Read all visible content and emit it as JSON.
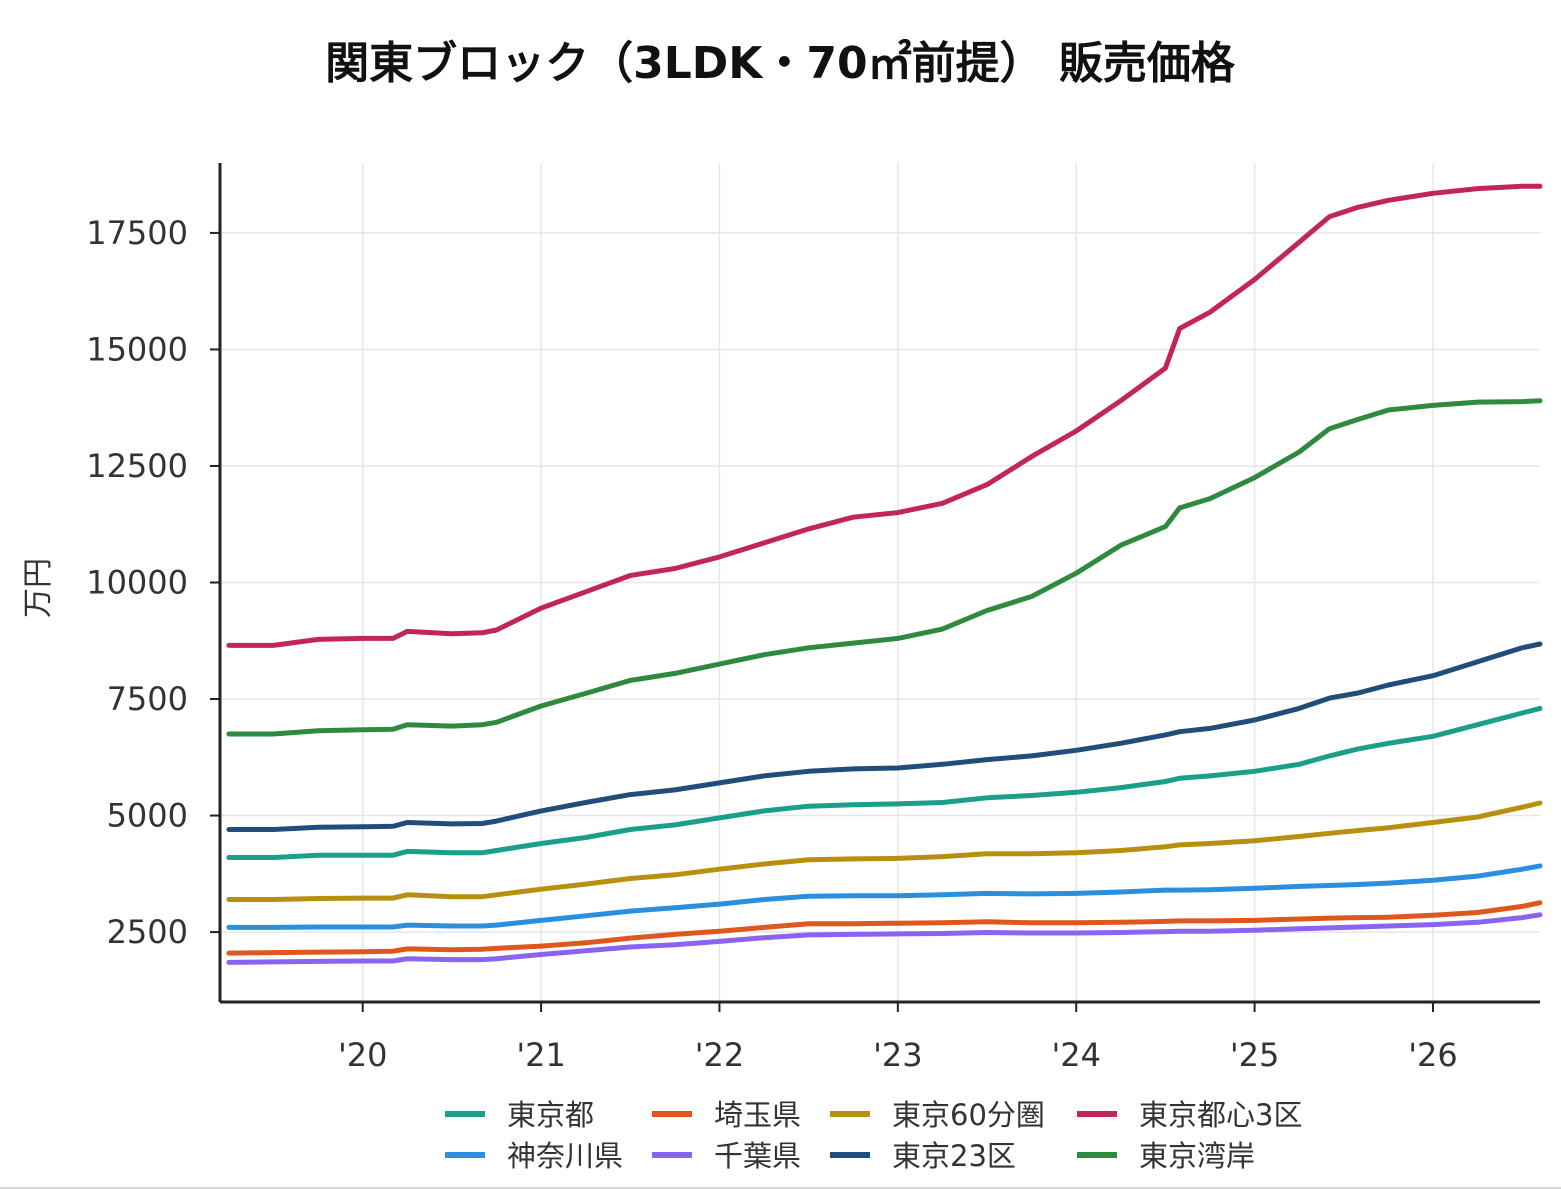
{
  "chart_data": {
    "type": "line",
    "title": "関東ブロック（3LDK・70㎡前提） 販売価格",
    "ylabel": "万円",
    "xlabel": "",
    "ylim": [
      1000,
      19000
    ],
    "yticks": [
      2500,
      5000,
      7500,
      10000,
      12500,
      15000,
      17500
    ],
    "xlim": [
      2019.2,
      2026.6
    ],
    "xticks": [
      {
        "value": 2020,
        "label": "'20"
      },
      {
        "value": 2021,
        "label": "'21"
      },
      {
        "value": 2022,
        "label": "'22"
      },
      {
        "value": 2023,
        "label": "'23"
      },
      {
        "value": 2024,
        "label": "'24"
      },
      {
        "value": 2025,
        "label": "'25"
      },
      {
        "value": 2026,
        "label": "'26"
      }
    ],
    "grid": true,
    "legend_position": "bottom",
    "x": [
      2019.25,
      2019.5,
      2019.75,
      2020.0,
      2020.17,
      2020.25,
      2020.5,
      2020.67,
      2020.75,
      2021.0,
      2021.25,
      2021.5,
      2021.75,
      2022.0,
      2022.25,
      2022.5,
      2022.75,
      2023.0,
      2023.25,
      2023.5,
      2023.75,
      2024.0,
      2024.25,
      2024.5,
      2024.58,
      2024.75,
      2025.0,
      2025.25,
      2025.42,
      2025.58,
      2025.75,
      2026.0,
      2026.25,
      2026.5,
      2026.6
    ],
    "series": [
      {
        "name": "東京都",
        "color": "#1b9e8a",
        "values": [
          4100,
          4100,
          4150,
          4150,
          4150,
          4230,
          4200,
          4200,
          4250,
          4400,
          4530,
          4700,
          4800,
          4950,
          5100,
          5200,
          5230,
          5250,
          5280,
          5380,
          5430,
          5500,
          5600,
          5730,
          5800,
          5850,
          5950,
          6100,
          6280,
          6430,
          6550,
          6700,
          6950,
          7200,
          7300
        ]
      },
      {
        "name": "埼玉県",
        "color": "#e0561f",
        "values": [
          2050,
          2060,
          2070,
          2080,
          2090,
          2140,
          2120,
          2130,
          2150,
          2200,
          2270,
          2370,
          2450,
          2520,
          2600,
          2680,
          2680,
          2690,
          2700,
          2720,
          2700,
          2700,
          2710,
          2730,
          2740,
          2740,
          2750,
          2780,
          2800,
          2810,
          2820,
          2860,
          2920,
          3050,
          3130
        ]
      },
      {
        "name": "東京60分圏",
        "color": "#b8900f",
        "values": [
          3200,
          3200,
          3220,
          3230,
          3230,
          3300,
          3260,
          3260,
          3300,
          3420,
          3530,
          3650,
          3730,
          3850,
          3960,
          4050,
          4070,
          4080,
          4120,
          4180,
          4180,
          4200,
          4250,
          4330,
          4370,
          4400,
          4460,
          4550,
          4620,
          4680,
          4740,
          4850,
          4970,
          5180,
          5270
        ]
      },
      {
        "name": "東京都心3区",
        "color": "#c2255c",
        "values": [
          8650,
          8650,
          8780,
          8800,
          8800,
          8950,
          8900,
          8920,
          8980,
          9450,
          9800,
          10150,
          10300,
          10550,
          10850,
          11150,
          11400,
          11500,
          11700,
          12100,
          12700,
          13250,
          13900,
          14600,
          15450,
          15800,
          16500,
          17300,
          17850,
          18050,
          18200,
          18350,
          18450,
          18500,
          18500
        ]
      },
      {
        "name": "神奈川県",
        "color": "#2b8fe0",
        "values": [
          2600,
          2600,
          2610,
          2610,
          2610,
          2650,
          2630,
          2630,
          2650,
          2750,
          2850,
          2950,
          3020,
          3100,
          3200,
          3270,
          3280,
          3280,
          3300,
          3330,
          3320,
          3330,
          3360,
          3400,
          3400,
          3410,
          3440,
          3480,
          3500,
          3520,
          3550,
          3610,
          3700,
          3850,
          3920
        ]
      },
      {
        "name": "千葉県",
        "color": "#8a63f0",
        "values": [
          1850,
          1860,
          1870,
          1880,
          1880,
          1930,
          1910,
          1910,
          1930,
          2020,
          2100,
          2180,
          2230,
          2300,
          2380,
          2440,
          2450,
          2460,
          2470,
          2490,
          2480,
          2480,
          2490,
          2510,
          2520,
          2520,
          2540,
          2570,
          2590,
          2610,
          2630,
          2660,
          2710,
          2810,
          2870
        ]
      },
      {
        "name": "東京23区",
        "color": "#1f4e7a",
        "values": [
          4700,
          4700,
          4750,
          4760,
          4770,
          4850,
          4820,
          4830,
          4880,
          5100,
          5280,
          5450,
          5550,
          5700,
          5850,
          5950,
          6000,
          6020,
          6100,
          6200,
          6280,
          6400,
          6550,
          6730,
          6800,
          6870,
          7050,
          7300,
          7520,
          7630,
          7800,
          8000,
          8300,
          8600,
          8680
        ]
      },
      {
        "name": "東京湾岸",
        "color": "#2e8a3e",
        "values": [
          6750,
          6750,
          6820,
          6840,
          6850,
          6950,
          6920,
          6950,
          7000,
          7350,
          7620,
          7900,
          8050,
          8250,
          8450,
          8600,
          8700,
          8800,
          9000,
          9400,
          9700,
          10200,
          10800,
          11200,
          11600,
          11800,
          12250,
          12800,
          13300,
          13500,
          13700,
          13800,
          13870,
          13880,
          13900
        ]
      }
    ]
  }
}
